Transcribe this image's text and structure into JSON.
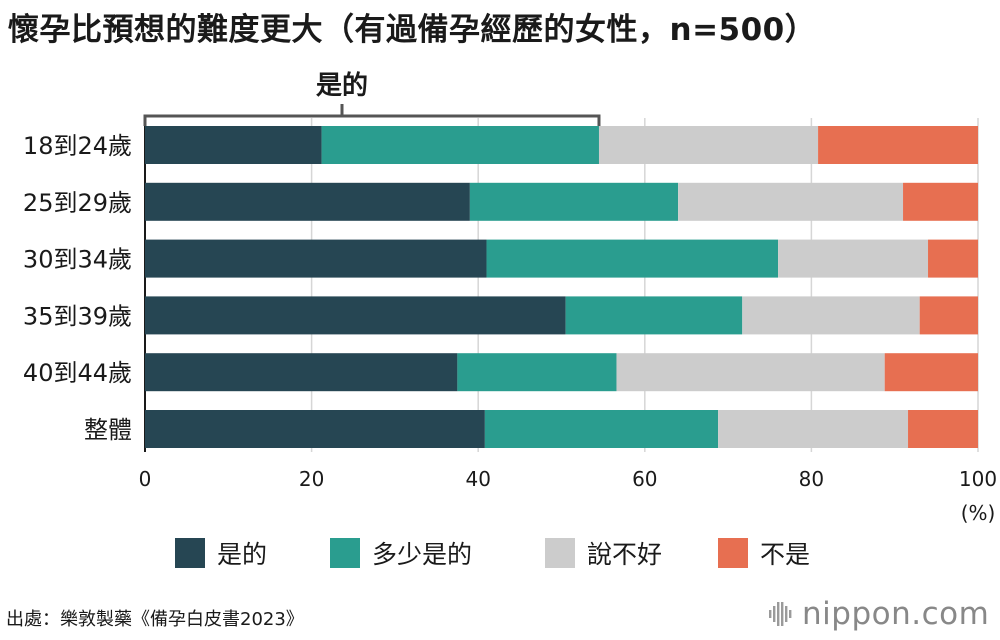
{
  "title": "懷孕比預想的難度更大（有過備孕經歷的女性，n=500）",
  "chart_data": {
    "type": "bar",
    "orientation": "horizontal",
    "stacked": true,
    "categories": [
      "18到24歲",
      "25到29歲",
      "30到34歲",
      "35到39歲",
      "40到44歲",
      "整體"
    ],
    "series": [
      {
        "name": "是的",
        "color": "#264653",
        "values": [
          21.2,
          39.0,
          41.0,
          50.5,
          37.5,
          40.8
        ]
      },
      {
        "name": "多少是的",
        "color": "#2a9d8f",
        "values": [
          33.3,
          25.0,
          35.0,
          21.2,
          19.1,
          28.0
        ]
      },
      {
        "name": "說不好",
        "color": "#cccccc",
        "values": [
          26.3,
          27.0,
          18.0,
          21.3,
          32.2,
          22.8
        ]
      },
      {
        "name": "不是",
        "color": "#e76f51",
        "values": [
          19.2,
          9.0,
          6.0,
          7.0,
          11.2,
          8.4
        ]
      }
    ],
    "xlim": [
      0,
      100
    ],
    "xticks": [
      "0",
      "20",
      "40",
      "60",
      "80",
      "100"
    ],
    "unit_label": "(%)",
    "bracket_label": "是的",
    "grid": true,
    "legend_position": "bottom"
  },
  "source": "出處：樂敦製藥《備孕白皮書2023》",
  "brand": "nippon.com"
}
